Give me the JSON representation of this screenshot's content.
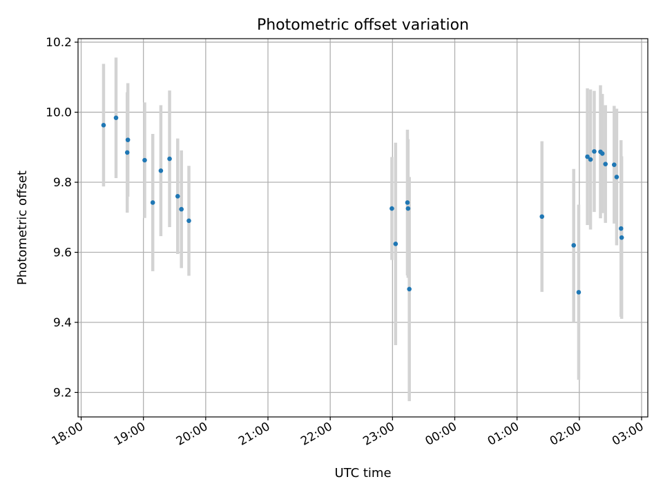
{
  "chart_data": {
    "type": "scatter",
    "title": "Photometric offset variation",
    "xlabel": "UTC time",
    "ylabel": "Photometric offset",
    "xlim": [
      -0.05,
      9.1
    ],
    "ylim": [
      9.13,
      10.21
    ],
    "x_ticks": [
      {
        "value": 0,
        "label": "18:00"
      },
      {
        "value": 1,
        "label": "19:00"
      },
      {
        "value": 2,
        "label": "20:00"
      },
      {
        "value": 3,
        "label": "21:00"
      },
      {
        "value": 4,
        "label": "22:00"
      },
      {
        "value": 5,
        "label": "23:00"
      },
      {
        "value": 6,
        "label": "00:00"
      },
      {
        "value": 7,
        "label": "01:00"
      },
      {
        "value": 8,
        "label": "02:00"
      },
      {
        "value": 9,
        "label": "03:00"
      }
    ],
    "y_ticks": [
      {
        "value": 9.2,
        "label": "9.2"
      },
      {
        "value": 9.4,
        "label": "9.4"
      },
      {
        "value": 9.6,
        "label": "9.6"
      },
      {
        "value": 9.8,
        "label": "9.8"
      },
      {
        "value": 10.0,
        "label": "10.0"
      },
      {
        "value": 10.2,
        "label": "10.2"
      }
    ],
    "grid": true,
    "point_color": "#1f77b4",
    "errorbar_color": "#d3d3d3",
    "points": [
      {
        "x": 0.36,
        "y": 9.963,
        "err": 0.175
      },
      {
        "x": 0.56,
        "y": 9.984,
        "err": 0.172
      },
      {
        "x": 0.74,
        "y": 9.885,
        "err": 0.172
      },
      {
        "x": 0.75,
        "y": 9.921,
        "err": 0.162
      },
      {
        "x": 1.02,
        "y": 9.863,
        "err": 0.165
      },
      {
        "x": 1.15,
        "y": 9.742,
        "err": 0.196
      },
      {
        "x": 1.28,
        "y": 9.833,
        "err": 0.187
      },
      {
        "x": 1.42,
        "y": 9.867,
        "err": 0.195
      },
      {
        "x": 1.55,
        "y": 9.76,
        "err": 0.165
      },
      {
        "x": 1.61,
        "y": 9.723,
        "err": 0.168
      },
      {
        "x": 1.73,
        "y": 9.69,
        "err": 0.157
      },
      {
        "x": 4.99,
        "y": 9.725,
        "err": 0.147
      },
      {
        "x": 5.05,
        "y": 9.624,
        "err": 0.289
      },
      {
        "x": 5.24,
        "y": 9.742,
        "err": 0.208
      },
      {
        "x": 5.25,
        "y": 9.725,
        "err": 0.198
      },
      {
        "x": 5.27,
        "y": 9.495,
        "err": 0.32
      },
      {
        "x": 7.4,
        "y": 9.702,
        "err": 0.215
      },
      {
        "x": 7.91,
        "y": 9.62,
        "err": 0.218
      },
      {
        "x": 7.99,
        "y": 9.486,
        "err": 0.25
      },
      {
        "x": 8.13,
        "y": 9.873,
        "err": 0.195
      },
      {
        "x": 8.18,
        "y": 9.865,
        "err": 0.2
      },
      {
        "x": 8.24,
        "y": 9.888,
        "err": 0.173
      },
      {
        "x": 8.34,
        "y": 9.887,
        "err": 0.19
      },
      {
        "x": 8.37,
        "y": 9.882,
        "err": 0.17
      },
      {
        "x": 8.42,
        "y": 9.852,
        "err": 0.168
      },
      {
        "x": 8.56,
        "y": 9.85,
        "err": 0.168
      },
      {
        "x": 8.6,
        "y": 9.815,
        "err": 0.195
      },
      {
        "x": 8.67,
        "y": 9.668,
        "err": 0.252
      },
      {
        "x": 8.68,
        "y": 9.642,
        "err": 0.232
      }
    ]
  }
}
